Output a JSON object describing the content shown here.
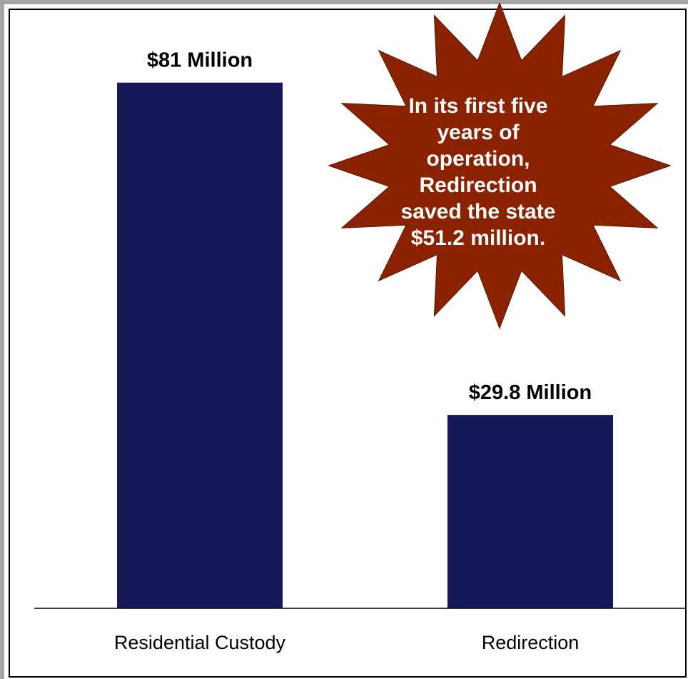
{
  "chart_data": {
    "type": "bar",
    "title": "",
    "xlabel": "",
    "ylabel": "",
    "categories": [
      "Residential Custody",
      "Redirection"
    ],
    "values": [
      81,
      29.8
    ],
    "data_labels": [
      "$81 Million",
      "$29.8 Million"
    ],
    "unit": "Million",
    "ylim": [
      0,
      100
    ],
    "grid": false,
    "legend": "none",
    "colors": {
      "bar": "#17185a",
      "burst": "#8a2200",
      "burst_text": "#ffffff",
      "axis": "#000000"
    },
    "annotation": {
      "text": "In its first five years of operation, Redirection saved the state $51.2 million.",
      "lines": [
        "In its first five",
        "years of operation,",
        "Redirection",
        "saved the state",
        "$51.2 million."
      ]
    }
  }
}
